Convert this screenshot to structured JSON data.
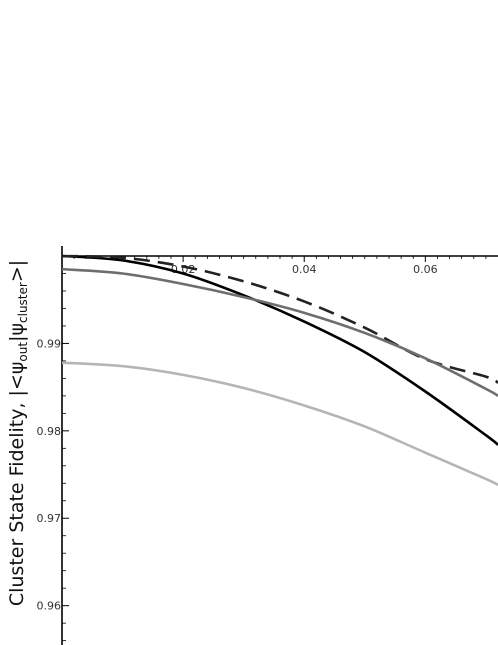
{
  "chart_data": {
    "type": "line",
    "title": "",
    "xlabel": "",
    "ylabel_parts": {
      "prefix": "Cluster State Fidelity, |<ψ",
      "sub1": "out",
      "middle": "|ψ",
      "sub2": "cluster",
      "suffix": ">|"
    },
    "xlim": [
      0,
      0.072
    ],
    "ylim": [
      0.9555,
      1.0
    ],
    "x_ticks": [
      {
        "value": 0.02,
        "label": "0.02"
      },
      {
        "value": 0.04,
        "label": "0.04"
      },
      {
        "value": 0.06,
        "label": "0.06"
      }
    ],
    "y_ticks": [
      {
        "value": 0.99,
        "label": "0.99"
      },
      {
        "value": 0.98,
        "label": "0.98"
      },
      {
        "value": 0.97,
        "label": "0.97"
      },
      {
        "value": 0.96,
        "label": "0.96"
      }
    ],
    "grid": false,
    "legend": "none",
    "series": [
      {
        "style": "solid",
        "color": "#000000",
        "x": [
          0,
          0.01,
          0.02,
          0.03,
          0.04,
          0.05,
          0.06,
          0.07,
          0.072
        ],
        "y": [
          1.0,
          0.9995,
          0.998,
          0.9955,
          0.9925,
          0.989,
          0.9845,
          0.9795,
          0.9784
        ]
      },
      {
        "style": "dashed",
        "color": "#222222",
        "x": [
          0,
          0.01,
          0.02,
          0.03,
          0.04,
          0.05,
          0.06,
          0.07,
          0.072
        ],
        "y": [
          1.0,
          0.9998,
          0.9988,
          0.9971,
          0.9948,
          0.9918,
          0.9882,
          0.9862,
          0.9855
        ]
      },
      {
        "style": "solid",
        "color": "#6e6e6e",
        "x": [
          0,
          0.01,
          0.02,
          0.03,
          0.04,
          0.05,
          0.06,
          0.07,
          0.072
        ],
        "y": [
          0.9985,
          0.998,
          0.9968,
          0.9953,
          0.9935,
          0.9912,
          0.9883,
          0.9848,
          0.984
        ]
      },
      {
        "style": "solid",
        "color": "#b5b5b5",
        "x": [
          0,
          0.01,
          0.02,
          0.03,
          0.04,
          0.05,
          0.06,
          0.07,
          0.072
        ],
        "y": [
          0.9878,
          0.9874,
          0.9864,
          0.9849,
          0.9829,
          0.9805,
          0.9775,
          0.9745,
          0.9738
        ]
      }
    ]
  }
}
